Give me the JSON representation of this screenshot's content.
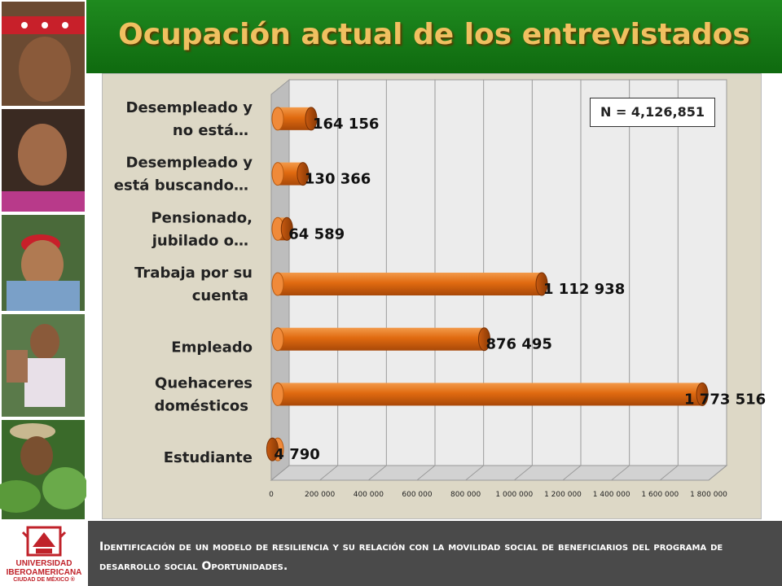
{
  "slide": {
    "title": "Ocupación actual de los entrevistados",
    "sample_note": "N = 4,126,851",
    "footer_text": "Identificación de un modelo de resiliencia y su relación con la movilidad social de beneficiarios del programa de desarrollo social Oportunidades.",
    "logo": {
      "line1": "UNIVERSIDAD",
      "line2": "IBEROAMERICANA",
      "line3": "CIUDAD DE MÉXICO ®"
    },
    "colors": {
      "title_bar": "#167a16",
      "title_text": "#f0c060",
      "bar": "#e06a10",
      "footer": "#4a4a4a",
      "logo_red": "#c0222a"
    }
  },
  "chart_data": {
    "type": "bar",
    "orientation": "horizontal",
    "style": "3d",
    "categories": [
      {
        "lines": [
          "Desempleado y",
          "no está…"
        ]
      },
      {
        "lines": [
          "Desempleado y",
          "está buscando…"
        ]
      },
      {
        "lines": [
          "Pensionado,",
          "jubilado o…"
        ]
      },
      {
        "lines": [
          "Trabaja por su",
          "cuenta"
        ]
      },
      {
        "lines": [
          "Empleado"
        ]
      },
      {
        "lines": [
          "Quehaceres",
          "domésticos"
        ]
      },
      {
        "lines": [
          "Estudiante"
        ]
      }
    ],
    "values": [
      164156,
      130366,
      64589,
      1112938,
      876495,
      1773516,
      4790
    ],
    "value_labels": [
      "164 156",
      "130 366",
      "64 589",
      "1 112 938",
      "876 495",
      "1 773 516",
      "4 790"
    ],
    "x_ticks": [
      "0",
      "200 000",
      "400 000",
      "600 000",
      "800 000",
      "1 000 000",
      "1 200 000",
      "1 400 000",
      "1 600 000",
      "1 800 000"
    ],
    "xlim": [
      0,
      1800000
    ],
    "grid": true
  }
}
